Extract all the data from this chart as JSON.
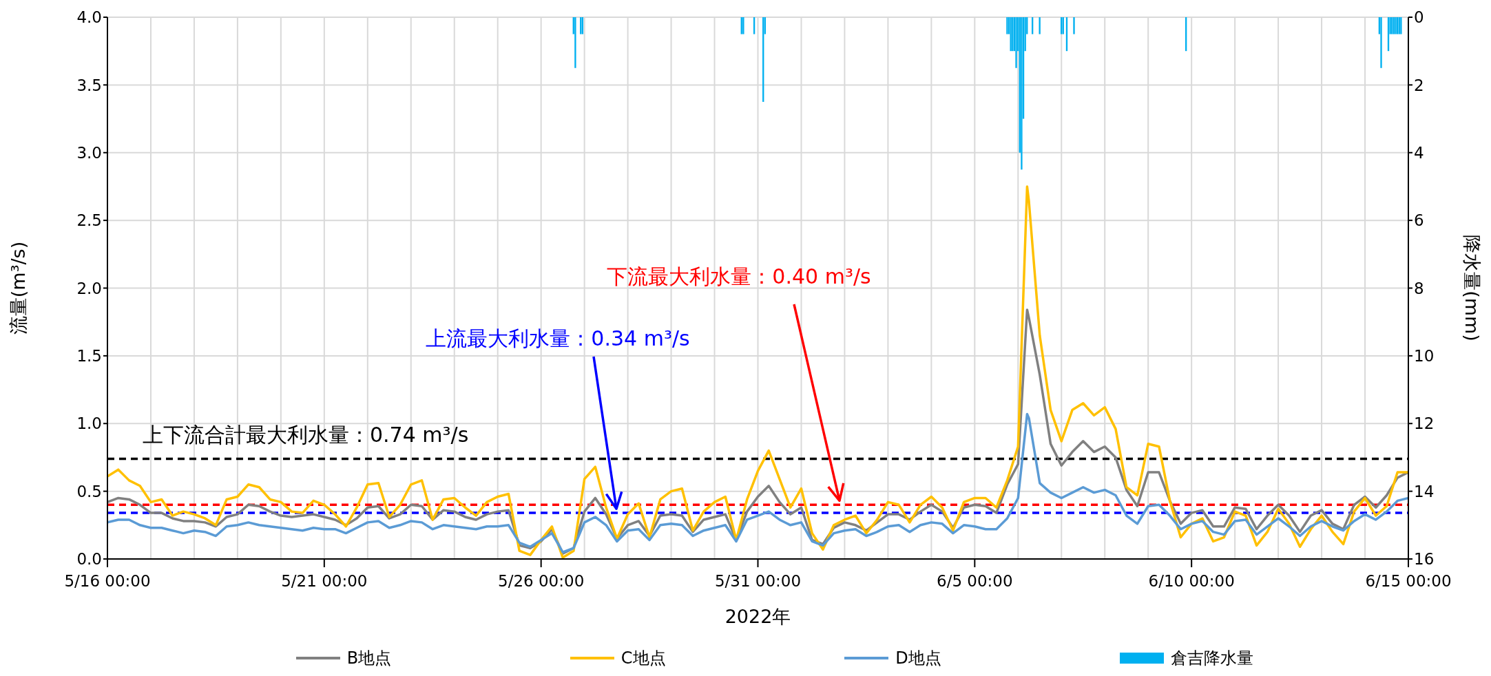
{
  "chart_data": {
    "type": "line",
    "xlabel": "2022年",
    "ylabel": "流量(m³/s)",
    "y2label": "降水量(mm)",
    "x": [
      "2022-05-16T00:00",
      "2022-05-16T06:00",
      "2022-05-16T12:00",
      "2022-05-16T18:00",
      "2022-05-17T00:00",
      "2022-05-17T06:00",
      "2022-05-17T12:00",
      "2022-05-17T18:00",
      "2022-05-18T00:00",
      "2022-05-18T06:00",
      "2022-05-18T12:00",
      "2022-05-18T18:00",
      "2022-05-19T00:00",
      "2022-05-19T06:00",
      "2022-05-19T12:00",
      "2022-05-19T18:00",
      "2022-05-20T00:00",
      "2022-05-20T06:00",
      "2022-05-20T12:00",
      "2022-05-20T18:00",
      "2022-05-21T00:00",
      "2022-05-21T06:00",
      "2022-05-21T12:00",
      "2022-05-21T18:00",
      "2022-05-22T00:00",
      "2022-05-22T06:00",
      "2022-05-22T12:00",
      "2022-05-22T18:00",
      "2022-05-23T00:00",
      "2022-05-23T06:00",
      "2022-05-23T12:00",
      "2022-05-23T18:00",
      "2022-05-24T00:00",
      "2022-05-24T06:00",
      "2022-05-24T12:00",
      "2022-05-24T18:00",
      "2022-05-25T00:00",
      "2022-05-25T06:00",
      "2022-05-25T12:00",
      "2022-05-25T18:00",
      "2022-05-26T00:00",
      "2022-05-26T06:00",
      "2022-05-26T12:00",
      "2022-05-26T18:00",
      "2022-05-27T00:00",
      "2022-05-27T06:00",
      "2022-05-27T12:00",
      "2022-05-27T18:00",
      "2022-05-28T00:00",
      "2022-05-28T06:00",
      "2022-05-28T12:00",
      "2022-05-28T18:00",
      "2022-05-29T00:00",
      "2022-05-29T06:00",
      "2022-05-29T12:00",
      "2022-05-29T18:00",
      "2022-05-30T00:00",
      "2022-05-30T06:00",
      "2022-05-30T12:00",
      "2022-05-30T18:00",
      "2022-05-31T00:00",
      "2022-05-31T06:00",
      "2022-05-31T12:00",
      "2022-05-31T18:00",
      "2022-06-01T00:00",
      "2022-06-01T06:00",
      "2022-06-01T12:00",
      "2022-06-01T18:00",
      "2022-06-02T00:00",
      "2022-06-02T06:00",
      "2022-06-02T12:00",
      "2022-06-02T18:00",
      "2022-06-03T00:00",
      "2022-06-03T06:00",
      "2022-06-03T12:00",
      "2022-06-03T18:00",
      "2022-06-04T00:00",
      "2022-06-04T06:00",
      "2022-06-04T12:00",
      "2022-06-04T18:00",
      "2022-06-05T00:00",
      "2022-06-05T06:00",
      "2022-06-05T12:00",
      "2022-06-05T18:00",
      "2022-06-06T00:00",
      "2022-06-06T05:00",
      "2022-06-06T06:00",
      "2022-06-06T12:00",
      "2022-06-06T18:00",
      "2022-06-07T00:00",
      "2022-06-07T06:00",
      "2022-06-07T12:00",
      "2022-06-07T18:00",
      "2022-06-08T00:00",
      "2022-06-08T06:00",
      "2022-06-08T12:00",
      "2022-06-08T18:00",
      "2022-06-09T00:00",
      "2022-06-09T06:00",
      "2022-06-09T12:00",
      "2022-06-09T18:00",
      "2022-06-10T00:00",
      "2022-06-10T06:00",
      "2022-06-10T12:00",
      "2022-06-10T18:00",
      "2022-06-11T00:00",
      "2022-06-11T06:00",
      "2022-06-11T12:00",
      "2022-06-11T18:00",
      "2022-06-12T00:00",
      "2022-06-12T06:00",
      "2022-06-12T12:00",
      "2022-06-12T18:00",
      "2022-06-13T00:00",
      "2022-06-13T06:00",
      "2022-06-13T12:00",
      "2022-06-13T18:00",
      "2022-06-14T00:00",
      "2022-06-14T06:00",
      "2022-06-14T12:00",
      "2022-06-14T18:00",
      "2022-06-15T00:00"
    ],
    "series": [
      {
        "name": "B地点",
        "color": "#808080",
        "values": [
          0.42,
          0.45,
          0.44,
          0.4,
          0.34,
          0.34,
          0.3,
          0.28,
          0.28,
          0.27,
          0.24,
          0.31,
          0.33,
          0.4,
          0.39,
          0.35,
          0.32,
          0.31,
          0.32,
          0.33,
          0.31,
          0.29,
          0.25,
          0.3,
          0.38,
          0.39,
          0.3,
          0.33,
          0.4,
          0.39,
          0.29,
          0.36,
          0.35,
          0.31,
          0.29,
          0.33,
          0.35,
          0.36,
          0.1,
          0.08,
          0.13,
          0.22,
          0.04,
          0.08,
          0.35,
          0.45,
          0.33,
          0.15,
          0.25,
          0.28,
          0.17,
          0.32,
          0.33,
          0.32,
          0.2,
          0.29,
          0.31,
          0.33,
          0.14,
          0.35,
          0.46,
          0.54,
          0.42,
          0.33,
          0.38,
          0.14,
          0.11,
          0.23,
          0.27,
          0.25,
          0.21,
          0.27,
          0.33,
          0.33,
          0.29,
          0.35,
          0.4,
          0.35,
          0.23,
          0.38,
          0.4,
          0.39,
          0.34,
          0.55,
          0.7,
          1.84,
          1.78,
          1.36,
          0.85,
          0.69,
          0.79,
          0.87,
          0.79,
          0.83,
          0.75,
          0.51,
          0.39,
          0.64,
          0.64,
          0.43,
          0.26,
          0.34,
          0.36,
          0.24,
          0.24,
          0.38,
          0.37,
          0.22,
          0.32,
          0.4,
          0.32,
          0.2,
          0.32,
          0.36,
          0.26,
          0.22,
          0.4,
          0.46,
          0.38,
          0.47,
          0.6,
          0.64
        ]
      },
      {
        "name": "C地点",
        "color": "#ffc000",
        "values": [
          0.61,
          0.66,
          0.58,
          0.54,
          0.42,
          0.44,
          0.32,
          0.35,
          0.33,
          0.3,
          0.25,
          0.44,
          0.46,
          0.55,
          0.53,
          0.44,
          0.42,
          0.35,
          0.34,
          0.43,
          0.4,
          0.33,
          0.24,
          0.38,
          0.55,
          0.56,
          0.31,
          0.4,
          0.55,
          0.58,
          0.29,
          0.44,
          0.45,
          0.38,
          0.32,
          0.42,
          0.46,
          0.48,
          0.06,
          0.03,
          0.14,
          0.24,
          0.01,
          0.06,
          0.59,
          0.68,
          0.38,
          0.15,
          0.33,
          0.41,
          0.16,
          0.44,
          0.5,
          0.52,
          0.21,
          0.35,
          0.42,
          0.46,
          0.14,
          0.44,
          0.65,
          0.8,
          0.59,
          0.38,
          0.52,
          0.19,
          0.07,
          0.25,
          0.29,
          0.32,
          0.19,
          0.29,
          0.42,
          0.4,
          0.27,
          0.4,
          0.46,
          0.38,
          0.21,
          0.42,
          0.45,
          0.45,
          0.38,
          0.58,
          0.83,
          2.75,
          2.64,
          1.65,
          1.1,
          0.87,
          1.1,
          1.15,
          1.06,
          1.12,
          0.96,
          0.53,
          0.47,
          0.85,
          0.83,
          0.43,
          0.16,
          0.26,
          0.3,
          0.13,
          0.16,
          0.35,
          0.32,
          0.1,
          0.2,
          0.37,
          0.26,
          0.09,
          0.22,
          0.32,
          0.2,
          0.11,
          0.35,
          0.45,
          0.32,
          0.39,
          0.64,
          0.64
        ]
      },
      {
        "name": "D地点",
        "color": "#5b9bd5",
        "values": [
          0.27,
          0.29,
          0.29,
          0.25,
          0.23,
          0.23,
          0.21,
          0.19,
          0.21,
          0.2,
          0.17,
          0.24,
          0.25,
          0.27,
          0.25,
          0.24,
          0.23,
          0.22,
          0.21,
          0.23,
          0.22,
          0.22,
          0.19,
          0.23,
          0.27,
          0.28,
          0.23,
          0.25,
          0.28,
          0.27,
          0.22,
          0.25,
          0.24,
          0.23,
          0.22,
          0.24,
          0.24,
          0.25,
          0.12,
          0.09,
          0.14,
          0.19,
          0.05,
          0.08,
          0.27,
          0.31,
          0.25,
          0.13,
          0.21,
          0.22,
          0.14,
          0.25,
          0.26,
          0.25,
          0.17,
          0.21,
          0.23,
          0.25,
          0.13,
          0.29,
          0.32,
          0.35,
          0.29,
          0.25,
          0.27,
          0.13,
          0.1,
          0.19,
          0.21,
          0.22,
          0.17,
          0.2,
          0.24,
          0.25,
          0.2,
          0.25,
          0.27,
          0.26,
          0.19,
          0.25,
          0.24,
          0.22,
          0.22,
          0.3,
          0.45,
          1.07,
          1.04,
          0.56,
          0.49,
          0.45,
          0.49,
          0.53,
          0.49,
          0.51,
          0.47,
          0.32,
          0.26,
          0.39,
          0.4,
          0.32,
          0.22,
          0.26,
          0.28,
          0.2,
          0.18,
          0.28,
          0.29,
          0.18,
          0.24,
          0.3,
          0.24,
          0.17,
          0.24,
          0.28,
          0.24,
          0.21,
          0.28,
          0.33,
          0.29,
          0.35,
          0.43,
          0.45
        ]
      },
      {
        "name": "倉吉降水量",
        "type": "bar",
        "axis": "y2",
        "color": "#00b0f0",
        "x": [
          "2022-05-26T18:00",
          "2022-05-26T19:00",
          "2022-05-26T22:00",
          "2022-05-26T23:00",
          "2022-05-30T15:00",
          "2022-05-30T16:00",
          "2022-05-30T22:00",
          "2022-05-31T03:00",
          "2022-05-31T04:00",
          "2022-06-05T18:00",
          "2022-06-05T19:00",
          "2022-06-05T20:00",
          "2022-06-05T21:00",
          "2022-06-05T22:00",
          "2022-06-05T23:00",
          "2022-06-06T00:00",
          "2022-06-06T01:00",
          "2022-06-06T02:00",
          "2022-06-06T03:00",
          "2022-06-06T04:00",
          "2022-06-06T05:00",
          "2022-06-06T08:00",
          "2022-06-06T12:00",
          "2022-06-07T00:00",
          "2022-06-07T01:00",
          "2022-06-07T03:00",
          "2022-06-07T07:00",
          "2022-06-09T21:00",
          "2022-06-14T08:00",
          "2022-06-14T09:00",
          "2022-06-14T13:00",
          "2022-06-14T14:00",
          "2022-06-14T15:00",
          "2022-06-14T16:00",
          "2022-06-14T17:00",
          "2022-06-14T18:00",
          "2022-06-14T19:00",
          "2022-06-14T20:00"
        ],
        "values": [
          0.5,
          1.5,
          0.5,
          0.5,
          0.5,
          0.5,
          0.5,
          2.5,
          0.5,
          0.5,
          0.5,
          1.0,
          1.0,
          1.0,
          1.5,
          1.0,
          4.0,
          4.5,
          3.0,
          1.0,
          0.5,
          0.5,
          0.5,
          0.5,
          0.5,
          1.0,
          0.5,
          1.0,
          0.5,
          1.5,
          1.0,
          0.5,
          0.5,
          0.5,
          0.5,
          0.5,
          0.5,
          0.5
        ]
      }
    ],
    "xlim": [
      "2022-05-16T00:00",
      "2022-06-15T00:00"
    ],
    "xticks": [
      {
        "value": "2022-05-16T00:00",
        "label": "5/16 00:00"
      },
      {
        "value": "2022-05-17T00:00",
        "label": null
      },
      {
        "value": "2022-05-18T00:00",
        "label": null
      },
      {
        "value": "2022-05-19T00:00",
        "label": null
      },
      {
        "value": "2022-05-20T00:00",
        "label": null
      },
      {
        "value": "2022-05-21T00:00",
        "label": "5/21 00:00"
      },
      {
        "value": "2022-05-22T00:00",
        "label": null
      },
      {
        "value": "2022-05-23T00:00",
        "label": null
      },
      {
        "value": "2022-05-24T00:00",
        "label": null
      },
      {
        "value": "2022-05-25T00:00",
        "label": null
      },
      {
        "value": "2022-05-26T00:00",
        "label": "5/26 00:00"
      },
      {
        "value": "2022-05-27T00:00",
        "label": null
      },
      {
        "value": "2022-05-28T00:00",
        "label": null
      },
      {
        "value": "2022-05-29T00:00",
        "label": null
      },
      {
        "value": "2022-05-30T00:00",
        "label": null
      },
      {
        "value": "2022-05-31T00:00",
        "label": "5/31 00:00"
      },
      {
        "value": "2022-06-01T00:00",
        "label": null
      },
      {
        "value": "2022-06-02T00:00",
        "label": null
      },
      {
        "value": "2022-06-03T00:00",
        "label": null
      },
      {
        "value": "2022-06-04T00:00",
        "label": null
      },
      {
        "value": "2022-06-05T00:00",
        "label": "6/5 00:00"
      },
      {
        "value": "2022-06-06T00:00",
        "label": null
      },
      {
        "value": "2022-06-07T00:00",
        "label": null
      },
      {
        "value": "2022-06-08T00:00",
        "label": null
      },
      {
        "value": "2022-06-09T00:00",
        "label": null
      },
      {
        "value": "2022-06-10T00:00",
        "label": "6/10 00:00"
      },
      {
        "value": "2022-06-11T00:00",
        "label": null
      },
      {
        "value": "2022-06-12T00:00",
        "label": null
      },
      {
        "value": "2022-06-13T00:00",
        "label": null
      },
      {
        "value": "2022-06-14T00:00",
        "label": null
      },
      {
        "value": "2022-06-15T00:00",
        "label": "6/15 00:00"
      }
    ],
    "ylim": [
      0,
      4
    ],
    "yticks": [
      {
        "value": 0,
        "label": "0.0"
      },
      0.5,
      {
        "value": 1,
        "label": "1.0"
      },
      1.5,
      {
        "value": 2,
        "label": "2.0"
      },
      2.5,
      {
        "value": 3,
        "label": "3.0"
      },
      3.5,
      {
        "value": 4,
        "label": "4.0"
      }
    ],
    "y2lim": [
      16,
      0
    ],
    "y2ticks": [
      0,
      2,
      4,
      6,
      8,
      10,
      12,
      14,
      16
    ],
    "ref_lines": [
      {
        "axis": "y",
        "value": 0.74,
        "label": "上下流合計最大利水量：0.74 m³/s",
        "color": "#000000",
        "line_style": "dashed"
      },
      {
        "axis": "y",
        "value": 0.4,
        "label": "下流最大利水量：0.40 m³/s",
        "color": "#ff0000",
        "line_style": "dashed"
      },
      {
        "axis": "y",
        "value": 0.34,
        "label": "上流最大利水量：0.34 m³/s",
        "color": "#0000ff",
        "line_style": "dashed"
      }
    ],
    "grid": true,
    "legend": "bottom"
  }
}
